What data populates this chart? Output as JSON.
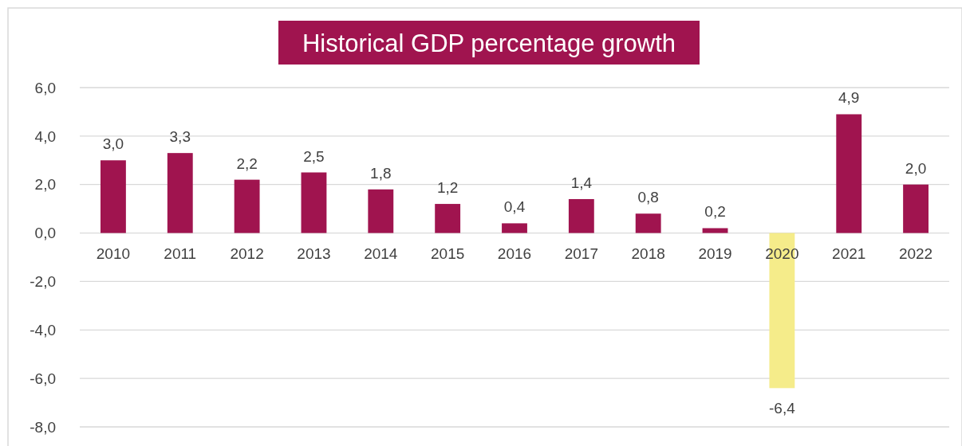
{
  "chart_data": {
    "type": "bar",
    "title": "Historical GDP percentage growth",
    "categories": [
      "2010",
      "2011",
      "2012",
      "2013",
      "2014",
      "2015",
      "2016",
      "2017",
      "2018",
      "2019",
      "2020",
      "2021",
      "2022"
    ],
    "values": [
      3.0,
      3.3,
      2.2,
      2.5,
      1.8,
      1.2,
      0.4,
      1.4,
      0.8,
      0.2,
      -6.4,
      4.9,
      2.0
    ],
    "value_labels": [
      "3,0",
      "3,3",
      "2,2",
      "2,5",
      "1,8",
      "1,2",
      "0,4",
      "1,4",
      "0,8",
      "0,2",
      "-6,4",
      "4,9",
      "2,0"
    ],
    "colors": [
      "#a0144f",
      "#a0144f",
      "#a0144f",
      "#a0144f",
      "#a0144f",
      "#a0144f",
      "#a0144f",
      "#a0144f",
      "#a0144f",
      "#a0144f",
      "#f5ec8a",
      "#a0144f",
      "#a0144f"
    ],
    "ylim": [
      -8,
      6
    ],
    "yticks": [
      {
        "value": -8,
        "label": "-8,0"
      },
      {
        "value": -6,
        "label": "-6,0"
      },
      {
        "value": -4,
        "label": "-4,0"
      },
      {
        "value": -2,
        "label": "-2,0"
      },
      {
        "value": 0,
        "label": "0,0"
      },
      {
        "value": 2,
        "label": "2,0"
      },
      {
        "value": 4,
        "label": "4,0"
      },
      {
        "value": 6,
        "label": "6,0"
      }
    ],
    "grid": "y"
  }
}
